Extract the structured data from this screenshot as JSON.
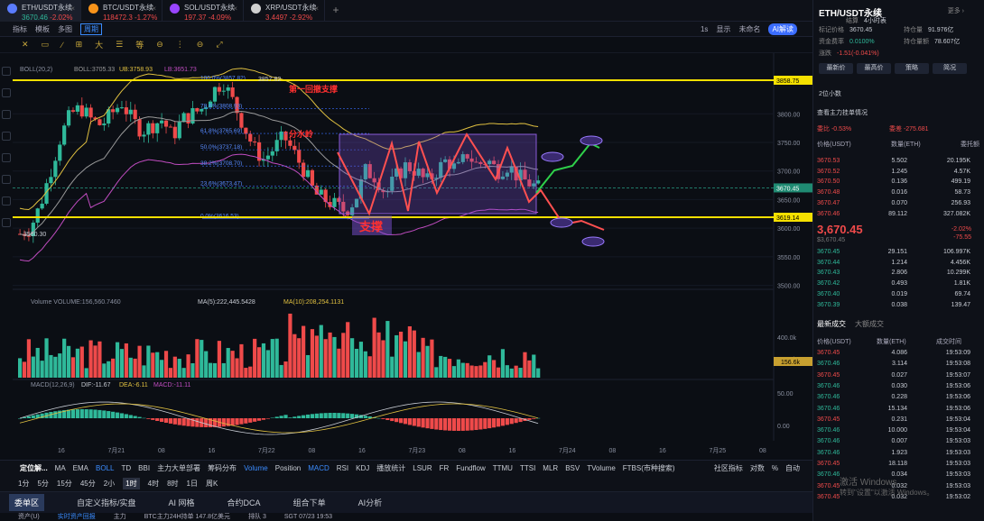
{
  "tabs": [
    {
      "name": "ETH/USDT永续",
      "price": "3670.46",
      "change": "-2.02%",
      "icon_color": "#5a7cff",
      "active": true
    },
    {
      "name": "BTC/USDT永续",
      "price": "118472.3",
      "change": "-1.27%",
      "icon_color": "#f7931a"
    },
    {
      "name": "SOL/USDT永续",
      "price": "197.37",
      "change": "-4.09%",
      "icon_color": "#9945ff"
    },
    {
      "name": "XRP/USDT永续",
      "price": "3.4497",
      "change": "-2.92%",
      "icon_color": "#d0d0d0"
    }
  ],
  "toolbar": {
    "items": [
      "指标",
      "模板",
      "多图",
      "周期"
    ],
    "right": [
      "1s",
      "显示",
      "未命名",
      "AI解读"
    ]
  },
  "draw_tools": [
    "✕",
    "▭",
    "∕",
    "⊞",
    "大",
    "☰",
    "等",
    "⊖",
    "⋮",
    "⊖",
    "⤢"
  ],
  "legend": {
    "boll": "BOLL(20,2)",
    "boll_mid": "BOLL:3705.33",
    "boll_ub": "UB:3758.93",
    "boll_lb": "LB:3651.73",
    "volume": "Volume  VOLUME:156,560.7460",
    "vol_ma": "MA(5):222,445.5428",
    "vol_ma10": "MA(10):208,254.1131",
    "macd": "MACD(12,26,9)",
    "macd_dif": "DIF:-11.67",
    "macd_dea": "DEA:-6.11",
    "macd_val": "MACD:-11.11"
  },
  "annotations": {
    "support": "支撑",
    "resistance": "第一回撤支撑",
    "divider": "分水岭",
    "low_label": "3580.30",
    "high_label": "3857.82"
  },
  "fib_levels": [
    {
      "label": "100.0%(3857.82)",
      "price": 3857.82
    },
    {
      "label": "78.6%(3808.93)",
      "price": 3808.93
    },
    {
      "label": "61.8%(3765.69)",
      "price": 3765.69
    },
    {
      "label": "50.0%(3737.18)",
      "price": 3737.18
    },
    {
      "label": "38.2%(3708.70)",
      "price": 3708.7
    },
    {
      "label": "23.6%(3673.47)",
      "price": 3673.47
    },
    {
      "label": "0.0%(3616.53)",
      "price": 3616.53
    }
  ],
  "price_axis": {
    "ticks": [
      "3800.00",
      "3750.00",
      "3700.00",
      "3650.00",
      "3600.00",
      "3550.00",
      "3500.00"
    ],
    "hline_top": "3858.75",
    "hline_bottom": "3619.14",
    "current": "3670.45"
  },
  "vol_axis": {
    "ticks": [
      "400.0k",
      "200.0k"
    ],
    "current": "156.6k"
  },
  "macd_axis": {
    "ticks": [
      "50.00",
      "0.00",
      "-50.00"
    ]
  },
  "time_axis": [
    "16",
    "7月21",
    "08",
    "16",
    "7月22",
    "08",
    "16",
    "7月23",
    "08",
    "16",
    "7月24",
    "08",
    "16",
    "7月25",
    "08"
  ],
  "indicator_bar": {
    "items": [
      "定位解...",
      "MA",
      "EMA",
      "BOLL",
      "TD",
      "BBI",
      "主力大单部署",
      "筹码分布",
      "Volume",
      "Position",
      "MACD",
      "RSI",
      "KDJ",
      "播放统计",
      "LSUR",
      "FR",
      "Fundflow",
      "TTMU",
      "TTSI",
      "MLR",
      "BSV",
      "TVolume",
      "FTBS(市种搜索)"
    ],
    "right": [
      "社区指标",
      "对数",
      "%",
      "自动"
    ]
  },
  "periods": [
    "1分",
    "5分",
    "15分",
    "45分",
    "2小",
    "1时",
    "4时",
    "8时",
    "1日",
    "周K"
  ],
  "period_selected": "1时",
  "modules": [
    "委单区",
    "自定义指标/实盘",
    "AI 网格",
    "合约DCA",
    "组合下单",
    "AI分析"
  ],
  "status_bar": [
    "资产(U)",
    "实时资产回报",
    "主力",
    "BTC主力24H持单 147.8亿美元",
    "排队 3",
    "SGT 07/23 19:53"
  ],
  "right_panel": {
    "title": "ETH/USDT永续",
    "more": "更多 ›",
    "kv": [
      [
        "标记价格",
        "3670.45"
      ],
      [
        "资金费率",
        "0.0100%"
      ],
      [
        "持仓量",
        "91.976亿"
      ],
      [
        "持仓量额",
        "78.607亿"
      ],
      [
        "涨跌",
        "-1.51(-0.041%)"
      ],
      [
        "结算",
        "4小时表"
      ]
    ],
    "buttons": [
      "最新价",
      "最高价",
      "策略",
      "简况"
    ],
    "ob_title": "查看主力挂单情况",
    "ob_stats": [
      "委比 -0.53%",
      "委差 -275.681"
    ],
    "ob_cols": [
      "价格(USDT)",
      "数量(ETH)",
      "委托额"
    ],
    "precision": "2位小数",
    "asks": [
      [
        "3670.53",
        "5.502",
        "20.195K"
      ],
      [
        "3670.52",
        "1.245",
        "4.57K"
      ],
      [
        "3670.50",
        "0.136",
        "499.19"
      ],
      [
        "3670.48",
        "0.016",
        "58.73"
      ],
      [
        "3670.47",
        "0.070",
        "256.93"
      ],
      [
        "3670.46",
        "89.112",
        "327.082K"
      ]
    ],
    "mid_price": "3,670.45",
    "mid_sub": "$3,670.45",
    "mid_change": "-2.02%",
    "mid_diff": "-75.55",
    "bids": [
      [
        "3670.45",
        "29.151",
        "106.997K"
      ],
      [
        "3670.44",
        "1.214",
        "4.456K"
      ],
      [
        "3670.43",
        "2.806",
        "10.299K"
      ],
      [
        "3670.42",
        "0.493",
        "1.81K"
      ],
      [
        "3670.40",
        "0.019",
        "69.74"
      ],
      [
        "3670.39",
        "0.038",
        "139.47"
      ]
    ],
    "trade_tabs": [
      "最新成交",
      "大额成交"
    ],
    "trade_cols": [
      "价格(USDT)",
      "数量(ETH)",
      "成交时间"
    ],
    "trades": [
      [
        "3670.45",
        "4.086",
        "19:53:09",
        "dn"
      ],
      [
        "3670.46",
        "3.114",
        "19:53:08",
        "up"
      ],
      [
        "3670.45",
        "0.027",
        "19:53:07",
        "dn"
      ],
      [
        "3670.46",
        "0.030",
        "19:53:06",
        "up"
      ],
      [
        "3670.46",
        "0.228",
        "19:53:06",
        "up"
      ],
      [
        "3670.46",
        "15.134",
        "19:53:06",
        "up"
      ],
      [
        "3670.45",
        "0.231",
        "19:53:04",
        "dn"
      ],
      [
        "3670.46",
        "10.000",
        "19:53:04",
        "up"
      ],
      [
        "3670.46",
        "0.007",
        "19:53:03",
        "up"
      ],
      [
        "3670.46",
        "1.923",
        "19:53:03",
        "up"
      ],
      [
        "3670.45",
        "18.118",
        "19:53:03",
        "dn"
      ],
      [
        "3670.46",
        "0.034",
        "19:53:03",
        "up"
      ],
      [
        "3670.45",
        "0.032",
        "19:53:03",
        "dn"
      ],
      [
        "3670.45",
        "0.032",
        "19:53:02",
        "dn"
      ]
    ]
  },
  "watermark": {
    "line1": "激活 Windows",
    "line2": "转到\"设置\"以激活 Windows。"
  },
  "colors": {
    "up": "#2fb99a",
    "down": "#ef4a4a",
    "yellow": "#f5e000",
    "accent": "#3b8cff",
    "box": "#7b4fd0"
  }
}
